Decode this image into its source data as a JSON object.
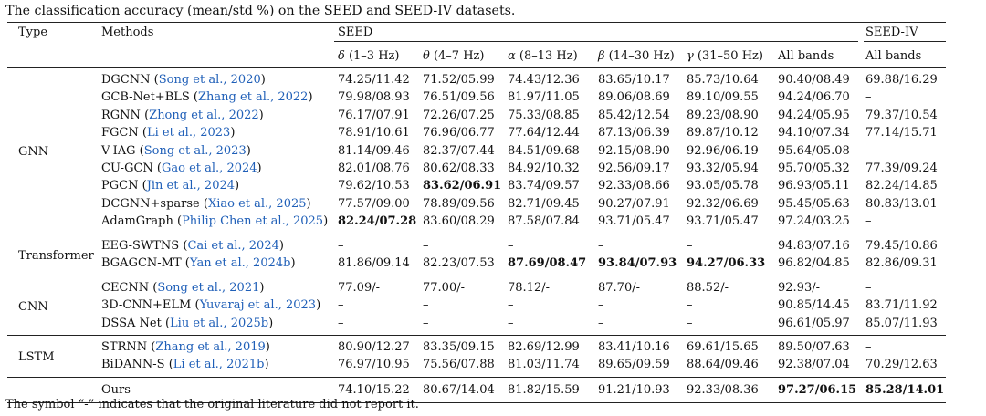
{
  "caption": "The classification accuracy (mean/std %) on the SEED and SEED-IV datasets.",
  "footnote": "The symbol “-” indicates that the original literature did not report it.",
  "header": {
    "type": "Type",
    "methods": "Methods",
    "seed": "SEED",
    "seed_iv": "SEED-IV",
    "bands": [
      {
        "sym": "δ",
        "range": " (1–3 Hz)"
      },
      {
        "sym": "θ",
        "range": " (4–7 Hz)"
      },
      {
        "sym": "α",
        "range": " (8–13 Hz)"
      },
      {
        "sym": "β",
        "range": " (14–30 Hz)"
      },
      {
        "sym": "γ",
        "range": " (31–50 Hz)"
      }
    ],
    "all_bands": "All bands",
    "all_bands_iv": "All bands"
  },
  "groups": [
    {
      "type": "GNN",
      "rows": [
        {
          "name": "DGCNN",
          "cite": "Song et al., 2020",
          "vals": [
            "74.25/11.42",
            "71.52/05.99",
            "74.43/12.36",
            "83.65/10.17",
            "85.73/10.64",
            "90.40/08.49",
            "69.88/16.29"
          ],
          "bold": []
        },
        {
          "name": "GCB-Net+BLS",
          "cite": "Zhang et al., 2022",
          "vals": [
            "79.98/08.93",
            "76.51/09.56",
            "81.97/11.05",
            "89.06/08.69",
            "89.10/09.55",
            "94.24/06.70",
            "–"
          ],
          "bold": []
        },
        {
          "name": "RGNN",
          "cite": "Zhong et al., 2022",
          "vals": [
            "76.17/07.91",
            "72.26/07.25",
            "75.33/08.85",
            "85.42/12.54",
            "89.23/08.90",
            "94.24/05.95",
            "79.37/10.54"
          ],
          "bold": []
        },
        {
          "name": "FGCN",
          "cite": "Li et al., 2023",
          "vals": [
            "78.91/10.61",
            "76.96/06.77",
            "77.64/12.44",
            "87.13/06.39",
            "89.87/10.12",
            "94.10/07.34",
            "77.14/15.71"
          ],
          "bold": []
        },
        {
          "name": "V-IAG",
          "cite": "Song et al., 2023",
          "vals": [
            "81.14/09.46",
            "82.37/07.44",
            "84.51/09.68",
            "92.15/08.90",
            "92.96/06.19",
            "95.64/05.08",
            "–"
          ],
          "bold": []
        },
        {
          "name": "CU-GCN",
          "cite": "Gao et al., 2024",
          "vals": [
            "82.01/08.76",
            "80.62/08.33",
            "84.92/10.32",
            "92.56/09.17",
            "93.32/05.94",
            "95.70/05.32",
            "77.39/09.24"
          ],
          "bold": []
        },
        {
          "name": "PGCN",
          "cite": "Jin et al., 2024",
          "vals": [
            "79.62/10.53",
            "83.62/06.91",
            "83.74/09.57",
            "92.33/08.66",
            "93.05/05.78",
            "96.93/05.11",
            "82.24/14.85"
          ],
          "bold": [
            1
          ]
        },
        {
          "name": "DCGNN+sparse",
          "cite": "Xiao et al., 2025",
          "vals": [
            "77.57/09.00",
            "78.89/09.56",
            "82.71/09.45",
            "90.27/07.91",
            "92.32/06.69",
            "95.45/05.63",
            "80.83/13.01"
          ],
          "bold": []
        },
        {
          "name": "AdamGraph",
          "cite": "Philip Chen et al., 2025",
          "vals": [
            "82.24/07.28",
            "83.60/08.29",
            "87.58/07.84",
            "93.71/05.47",
            "93.71/05.47",
            "97.24/03.25",
            "–"
          ],
          "bold": [
            0
          ]
        }
      ]
    },
    {
      "type": "Transformer",
      "rows": [
        {
          "name": "EEG-SWTNS",
          "cite": "Cai et al., 2024",
          "vals": [
            "–",
            "–",
            "–",
            "–",
            "–",
            "94.83/07.16",
            "79.45/10.86"
          ],
          "bold": []
        },
        {
          "name": "BGAGCN-MT",
          "cite": "Yan et al., 2024b",
          "vals": [
            "81.86/09.14",
            "82.23/07.53",
            "87.69/08.47",
            "93.84/07.93",
            "94.27/06.33",
            "96.82/04.85",
            "82.86/09.31"
          ],
          "bold": [
            2,
            3,
            4
          ]
        }
      ]
    },
    {
      "type": "CNN",
      "rows": [
        {
          "name": "CECNN",
          "cite": "Song et al., 2021",
          "vals": [
            "77.09/-",
            "77.00/-",
            "78.12/-",
            "87.70/-",
            "88.52/-",
            "92.93/-",
            "–"
          ],
          "bold": []
        },
        {
          "name": "3D-CNN+ELM",
          "cite": "Yuvaraj et al., 2023",
          "vals": [
            "–",
            "–",
            "–",
            "–",
            "–",
            "90.85/14.45",
            "83.71/11.92"
          ],
          "bold": []
        },
        {
          "name": "DSSA Net",
          "cite": "Liu et al., 2025b",
          "vals": [
            "–",
            "–",
            "–",
            "–",
            "–",
            "96.61/05.97",
            "85.07/11.93"
          ],
          "bold": []
        }
      ]
    },
    {
      "type": "LSTM",
      "rows": [
        {
          "name": "STRNN",
          "cite": "Zhang et al., 2019",
          "vals": [
            "80.90/12.27",
            "83.35/09.15",
            "82.69/12.99",
            "83.41/10.16",
            "69.61/15.65",
            "89.50/07.63",
            "–"
          ],
          "bold": []
        },
        {
          "name": "BiDANN-S",
          "cite": "Li et al., 2021b",
          "vals": [
            "76.97/10.95",
            "75.56/07.88",
            "81.03/11.74",
            "89.65/09.59",
            "88.64/09.46",
            "92.38/07.04",
            "70.29/12.63"
          ],
          "bold": []
        }
      ]
    }
  ],
  "ours": {
    "name": "Ours",
    "vals": [
      "74.10/15.22",
      "80.67/14.04",
      "81.82/15.59",
      "91.21/10.93",
      "92.33/08.36",
      "97.27/06.15",
      "85.28/14.01"
    ],
    "bold": [
      5,
      6
    ]
  }
}
